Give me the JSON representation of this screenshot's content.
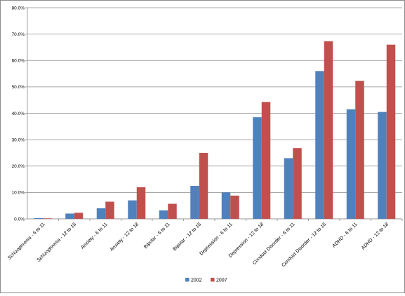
{
  "chart_data": {
    "type": "bar",
    "categories": [
      "Schizophrenia - 6 to 11",
      "Schizophrenia - 12 to 18",
      "Anxiety - 6 to 11",
      "Anxiety - 12 to 18",
      "Bipolar - 6 to 11",
      "Bipolar - 12 to 18",
      "Depression - 6 to 11",
      "Depression - 12 to 18",
      "Conduct Disorder - 6 to 11",
      "Conduct Disorder - 12 to 18",
      "ADHD - 6 to 11",
      "ADHD - 12 to 18"
    ],
    "series": [
      {
        "name": "2002",
        "color": "#4f81bd",
        "values": [
          0.3,
          2.0,
          4.0,
          7.0,
          3.2,
          12.5,
          10.0,
          38.5,
          23.0,
          56.0,
          41.5,
          40.5
        ]
      },
      {
        "name": "2007",
        "color": "#c0504d",
        "values": [
          0.2,
          2.3,
          6.5,
          12.0,
          5.7,
          25.0,
          8.8,
          44.3,
          26.8,
          67.3,
          52.3,
          66.0
        ]
      }
    ],
    "ylim": [
      0,
      80
    ],
    "yticks": [
      "0.0%",
      "10.0%",
      "20.0%",
      "30.0%",
      "40.0%",
      "50.0%",
      "60.0%",
      "70.0%",
      "80.0%"
    ],
    "title": "",
    "xlabel": "",
    "ylabel": "",
    "grid": true,
    "legend_position": "bottom"
  }
}
